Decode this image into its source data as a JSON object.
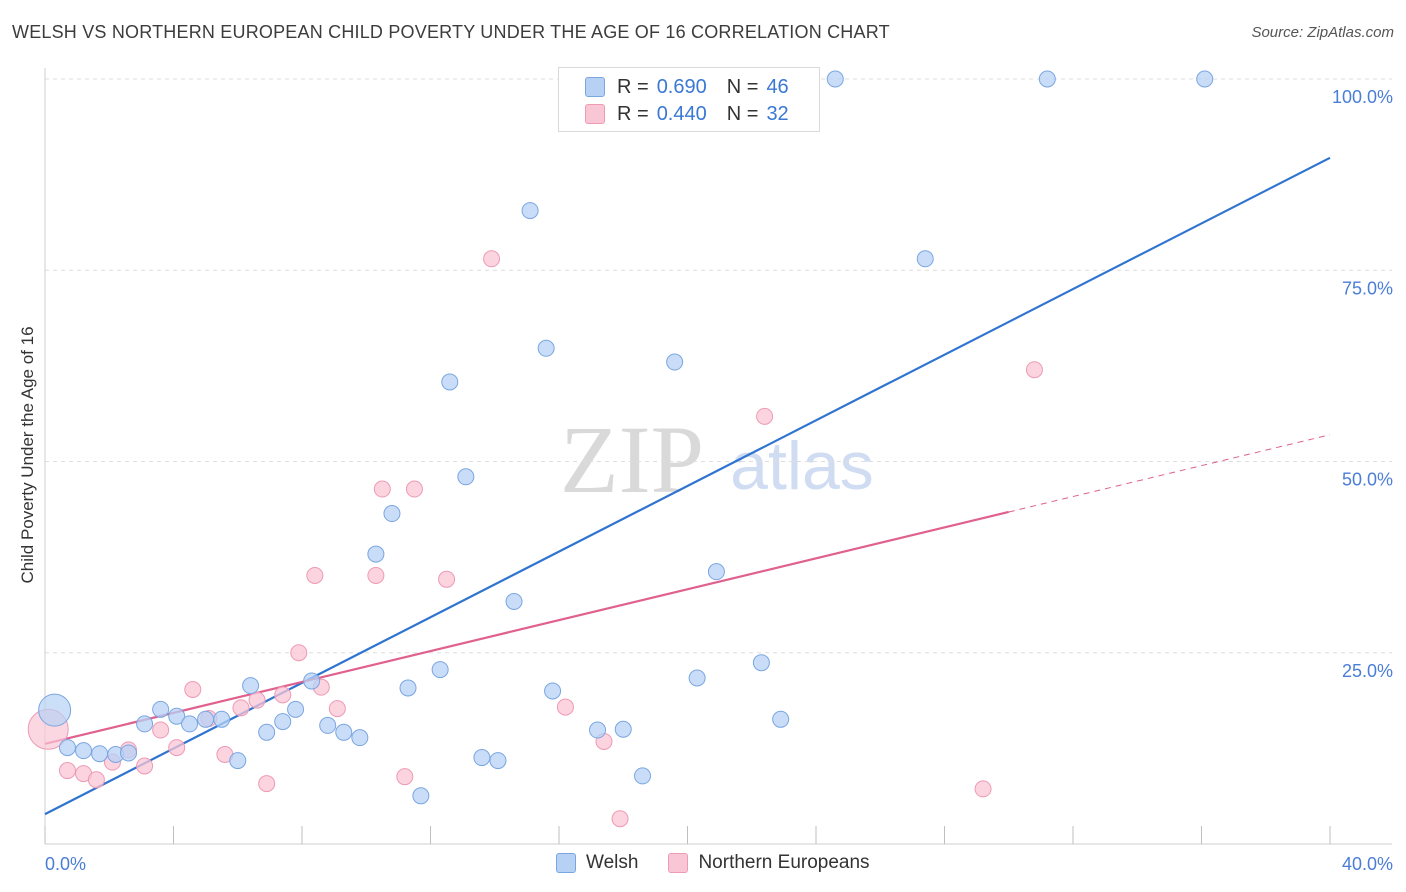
{
  "title": "WELSH VS NORTHERN EUROPEAN CHILD POVERTY UNDER THE AGE OF 16 CORRELATION CHART",
  "source": "Source: ZipAtlas.com",
  "watermark": {
    "zip": "ZIP",
    "atlas": "atlas"
  },
  "legend": {
    "r_label": "R =",
    "n_label": "N =",
    "welsh": {
      "r": "0.690",
      "n": "46"
    },
    "northern": {
      "r": "0.440",
      "n": "32"
    }
  },
  "bottom_legend": {
    "welsh": "Welsh",
    "northern": "Northern Europeans"
  },
  "colors": {
    "welsh_fill": "#b7d1f5",
    "welsh_stroke": "#7aa6e0",
    "welsh_line": "#2f74d0",
    "northern_fill": "#f9c6d6",
    "northern_stroke": "#ee9ab5",
    "northern_line": "#e0608e",
    "tick": "#4a7ed6"
  },
  "chart_data": {
    "type": "scatter",
    "title": "WELSH VS NORTHERN EUROPEAN CHILD POVERTY UNDER THE AGE OF 16 CORRELATION CHART",
    "xlabel": "",
    "ylabel": "Child Poverty Under the Age of 16",
    "xlim": [
      0,
      40
    ],
    "ylim": [
      0,
      100
    ],
    "x_tick_labels": [
      "0.0%",
      "40.0%"
    ],
    "y_ticks": [
      25,
      50,
      75,
      100
    ],
    "y_tick_labels": [
      "25.0%",
      "50.0%",
      "75.0%",
      "100.0%"
    ],
    "series": [
      {
        "name": "Welsh",
        "points": [
          [
            0.3,
            17.5
          ],
          [
            0.7,
            12.6
          ],
          [
            1.2,
            12.2
          ],
          [
            1.7,
            11.8
          ],
          [
            2.2,
            11.7
          ],
          [
            2.6,
            11.9
          ],
          [
            3.1,
            15.7
          ],
          [
            3.6,
            17.6
          ],
          [
            4.1,
            16.7
          ],
          [
            4.5,
            15.7
          ],
          [
            5.0,
            16.3
          ],
          [
            5.5,
            16.3
          ],
          [
            6.0,
            10.9
          ],
          [
            6.4,
            20.7
          ],
          [
            6.9,
            14.6
          ],
          [
            7.4,
            16.0
          ],
          [
            7.8,
            17.6
          ],
          [
            8.3,
            21.3
          ],
          [
            8.8,
            15.5
          ],
          [
            9.3,
            14.6
          ],
          [
            9.8,
            13.9
          ],
          [
            10.3,
            37.9
          ],
          [
            10.8,
            43.2
          ],
          [
            11.3,
            20.4
          ],
          [
            11.7,
            6.3
          ],
          [
            12.3,
            22.8
          ],
          [
            12.6,
            60.4
          ],
          [
            13.1,
            48.0
          ],
          [
            13.6,
            11.3
          ],
          [
            14.1,
            10.9
          ],
          [
            14.6,
            31.7
          ],
          [
            15.1,
            82.8
          ],
          [
            15.6,
            64.8
          ],
          [
            15.8,
            20.0
          ],
          [
            17.2,
            14.9
          ],
          [
            18.0,
            15.0
          ],
          [
            18.6,
            8.9
          ],
          [
            19.6,
            63.0
          ],
          [
            20.3,
            21.7
          ],
          [
            20.9,
            35.6
          ],
          [
            22.3,
            23.7
          ],
          [
            22.9,
            16.3
          ],
          [
            24.6,
            100.0
          ],
          [
            27.4,
            76.5
          ],
          [
            31.2,
            100.0
          ],
          [
            36.1,
            100.0
          ]
        ]
      },
      {
        "name": "Northern Europeans",
        "points": [
          [
            0.1,
            15.0
          ],
          [
            0.7,
            9.6
          ],
          [
            1.2,
            9.2
          ],
          [
            1.6,
            8.4
          ],
          [
            2.1,
            10.7
          ],
          [
            2.6,
            12.3
          ],
          [
            3.1,
            10.2
          ],
          [
            3.6,
            14.9
          ],
          [
            4.1,
            12.6
          ],
          [
            4.6,
            20.2
          ],
          [
            5.1,
            16.4
          ],
          [
            5.6,
            11.7
          ],
          [
            6.1,
            17.8
          ],
          [
            6.6,
            18.8
          ],
          [
            6.9,
            7.9
          ],
          [
            7.4,
            19.5
          ],
          [
            7.9,
            25.0
          ],
          [
            8.4,
            35.1
          ],
          [
            8.6,
            20.5
          ],
          [
            9.1,
            17.7
          ],
          [
            10.3,
            35.1
          ],
          [
            10.5,
            46.4
          ],
          [
            11.2,
            8.8
          ],
          [
            11.5,
            46.4
          ],
          [
            12.5,
            34.6
          ],
          [
            13.9,
            76.5
          ],
          [
            16.2,
            17.9
          ],
          [
            17.4,
            13.4
          ],
          [
            17.9,
            3.3
          ],
          [
            22.4,
            55.9
          ],
          [
            29.2,
            7.2
          ],
          [
            30.8,
            62.0
          ]
        ]
      }
    ],
    "trendlines": [
      {
        "series": "Welsh",
        "x": [
          0,
          40
        ],
        "y": [
          3.9,
          89.7
        ],
        "style": "solid"
      },
      {
        "series": "Northern Europeans",
        "x": [
          0,
          30.0
        ],
        "y": [
          13.1,
          43.4
        ],
        "style": "solid"
      },
      {
        "series": "Northern Europeans",
        "x": [
          30.0,
          40
        ],
        "y": [
          43.4,
          53.5
        ],
        "style": "dashed"
      }
    ]
  }
}
